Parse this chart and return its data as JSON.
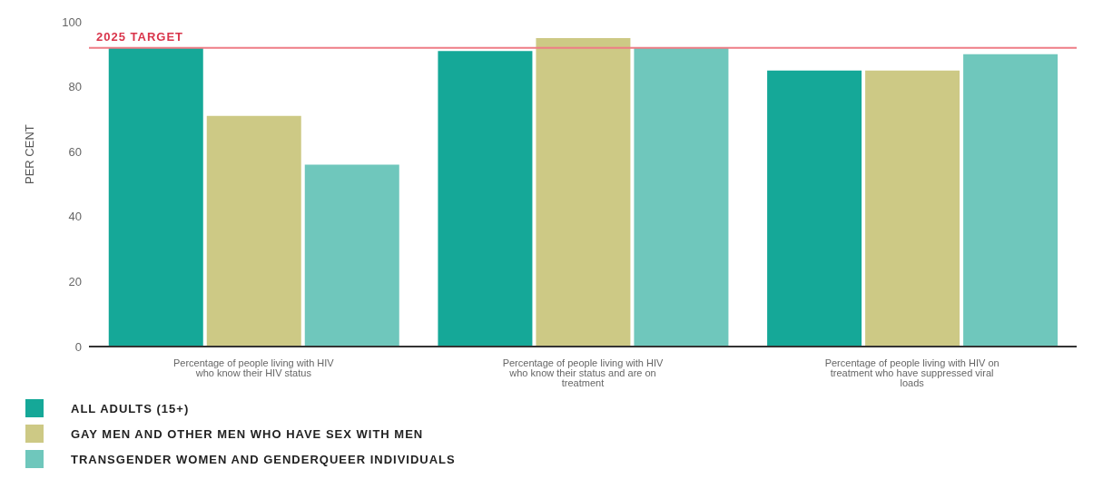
{
  "chart_data": {
    "type": "bar",
    "ylabel": "PER CENT",
    "categories": [
      "Percentage of people living with HIV who know their HIV status",
      "Percentage of people living with HIV who know their status and are on treatment",
      "Percentage of people living with HIV on treatment who have suppressed viral loads"
    ],
    "series": [
      {
        "name": "ALL ADULTS (15+)",
        "color": "#15a898",
        "values": [
          92,
          91,
          85
        ]
      },
      {
        "name": "GAY MEN AND OTHER MEN WHO HAVE SEX WITH MEN",
        "color": "#cdc985",
        "values": [
          71,
          95,
          85
        ]
      },
      {
        "name": "TRANSGENDER WOMEN AND GENDERQUEER INDIVIDUALS",
        "color": "#6fc7bc",
        "values": [
          56,
          92,
          90
        ]
      }
    ],
    "ylim": [
      0,
      100
    ],
    "yticks": [
      0,
      20,
      40,
      60,
      80,
      100
    ],
    "grid": false,
    "legend": "bottom left",
    "ref_lines": [
      {
        "axis": "y",
        "value": 92,
        "label": "2025 TARGET",
        "color": "#ee7d86"
      }
    ]
  }
}
